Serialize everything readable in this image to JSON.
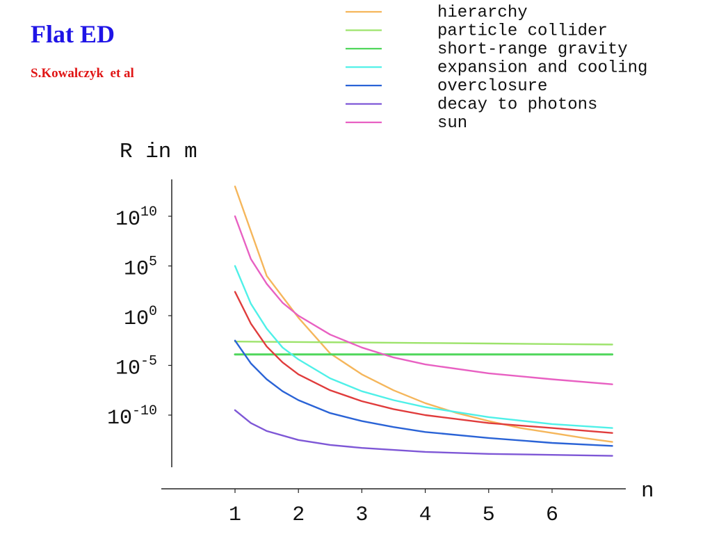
{
  "slide": {
    "title": "Flat ED",
    "author": "S.Kowalczyk  et al"
  },
  "chart_data": {
    "type": "line",
    "title": "",
    "xlabel": "n",
    "ylabel": "R in m",
    "yscale": "log",
    "xlim": [
      0.0,
      7.0
    ],
    "ylim_exponent": [
      -15,
      12
    ],
    "x_ticks": [
      {
        "value": 1,
        "label": "1"
      },
      {
        "value": 2,
        "label": "2"
      },
      {
        "value": 3,
        "label": "3"
      },
      {
        "value": 4,
        "label": "4"
      },
      {
        "value": 5,
        "label": "5"
      },
      {
        "value": 6,
        "label": "6"
      }
    ],
    "y_ticks": [
      {
        "exponent": 10,
        "base": "10",
        "sup": "10"
      },
      {
        "exponent": 5,
        "base": "10",
        "sup": "5"
      },
      {
        "exponent": 0,
        "base": "10",
        "sup": "0"
      },
      {
        "exponent": -5,
        "base": "10",
        "sup": "-5"
      },
      {
        "exponent": -10,
        "base": "10",
        "sup": "-10"
      }
    ],
    "legend_position": "top-right",
    "grid": false,
    "series": [
      {
        "name": "hierarchy",
        "color": "#f5b65b",
        "x": [
          1,
          1.5,
          2,
          2.5,
          3,
          3.5,
          4,
          4.5,
          5,
          5.5,
          6,
          6.5,
          6.95
        ],
        "log10_y": [
          13,
          4,
          -0.2,
          -3.8,
          -5.9,
          -7.5,
          -8.8,
          -9.8,
          -10.6,
          -11.3,
          -11.8,
          -12.3,
          -12.7
        ]
      },
      {
        "name": "particle collider",
        "color": "#9de36b",
        "x": [
          1,
          2,
          3,
          4,
          5,
          6,
          6.95
        ],
        "log10_y": [
          -2.6,
          -2.65,
          -2.7,
          -2.75,
          -2.8,
          -2.85,
          -2.9
        ]
      },
      {
        "name": "short-range gravity",
        "color": "#4fd65b",
        "x": [
          1,
          2,
          3,
          4,
          5,
          6,
          6.95
        ],
        "log10_y": [
          -3.9,
          -3.9,
          -3.9,
          -3.9,
          -3.9,
          -3.9,
          -3.9
        ]
      },
      {
        "name": "expansion and cooling",
        "color": "#4ff0e8",
        "x": [
          1,
          1.25,
          1.5,
          1.75,
          2,
          2.5,
          3,
          3.5,
          4,
          5,
          6,
          6.95
        ],
        "log10_y": [
          5,
          1.2,
          -1.3,
          -3.2,
          -4.4,
          -6.3,
          -7.6,
          -8.5,
          -9.2,
          -10.2,
          -10.9,
          -11.3
        ]
      },
      {
        "name": "overclosure",
        "color": "#2a63d6",
        "x": [
          1,
          1.25,
          1.5,
          1.75,
          2,
          2.5,
          3,
          3.5,
          4,
          5,
          6,
          6.95
        ],
        "log10_y": [
          -2.5,
          -4.8,
          -6.4,
          -7.6,
          -8.5,
          -9.8,
          -10.6,
          -11.2,
          -11.7,
          -12.3,
          -12.8,
          -13.1
        ]
      },
      {
        "name": "decay to photons",
        "color": "#7e57d6",
        "x": [
          1,
          1.25,
          1.5,
          2,
          2.5,
          3,
          4,
          5,
          6,
          6.95
        ],
        "log10_y": [
          -9.5,
          -10.8,
          -11.6,
          -12.5,
          -13.0,
          -13.3,
          -13.7,
          -13.9,
          -14.0,
          -14.1
        ]
      },
      {
        "name": "sun",
        "color": "#e860c2",
        "x": [
          1,
          1.25,
          1.5,
          1.75,
          2,
          2.5,
          3,
          3.5,
          4,
          5,
          6,
          6.95
        ],
        "log10_y": [
          10,
          5.7,
          3.2,
          1.3,
          0,
          -1.9,
          -3.2,
          -4.2,
          -4.9,
          -5.8,
          -6.4,
          -6.9
        ]
      },
      {
        "name": "",
        "color": "#e03c3c",
        "x": [
          1,
          1.25,
          1.5,
          1.75,
          2,
          2.5,
          3,
          3.5,
          4,
          5,
          6,
          6.95
        ],
        "log10_y": [
          2.4,
          -0.8,
          -3.1,
          -4.7,
          -5.9,
          -7.5,
          -8.6,
          -9.4,
          -10.0,
          -10.8,
          -11.3,
          -11.8
        ]
      }
    ]
  }
}
